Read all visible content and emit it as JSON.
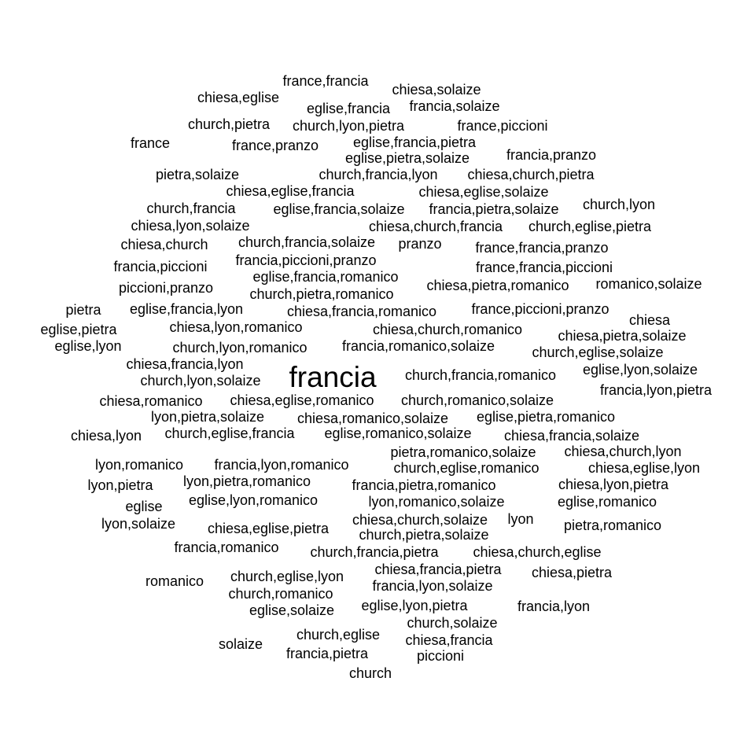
{
  "chart_data": {
    "type": "wordcloud",
    "text_color": "#000000",
    "background": "#ffffff",
    "words": [
      {
        "text": "france,francia",
        "weight": 1
      },
      {
        "text": "chiesa,solaize",
        "weight": 1
      },
      {
        "text": "chiesa,eglise",
        "weight": 1
      },
      {
        "text": "eglise,francia",
        "weight": 1
      },
      {
        "text": "francia,solaize",
        "weight": 1
      },
      {
        "text": "church,pietra",
        "weight": 1
      },
      {
        "text": "church,lyon,pietra",
        "weight": 1
      },
      {
        "text": "france,piccioni",
        "weight": 1
      },
      {
        "text": "france",
        "weight": 1
      },
      {
        "text": "france,pranzo",
        "weight": 1
      },
      {
        "text": "eglise,francia,pietra",
        "weight": 1
      },
      {
        "text": "eglise,pietra,solaize",
        "weight": 1
      },
      {
        "text": "francia,pranzo",
        "weight": 1
      },
      {
        "text": "pietra,solaize",
        "weight": 1
      },
      {
        "text": "church,francia,lyon",
        "weight": 1
      },
      {
        "text": "chiesa,church,pietra",
        "weight": 1
      },
      {
        "text": "chiesa,eglise,francia",
        "weight": 1
      },
      {
        "text": "chiesa,eglise,solaize",
        "weight": 1
      },
      {
        "text": "church,francia",
        "weight": 1
      },
      {
        "text": "eglise,francia,solaize",
        "weight": 1
      },
      {
        "text": "francia,pietra,solaize",
        "weight": 1
      },
      {
        "text": "church,lyon",
        "weight": 1
      },
      {
        "text": "chiesa,lyon,solaize",
        "weight": 1
      },
      {
        "text": "chiesa,church,francia",
        "weight": 1
      },
      {
        "text": "church,eglise,pietra",
        "weight": 1
      },
      {
        "text": "chiesa,church",
        "weight": 1
      },
      {
        "text": "church,francia,solaize",
        "weight": 1
      },
      {
        "text": "pranzo",
        "weight": 1
      },
      {
        "text": "france,francia,pranzo",
        "weight": 1
      },
      {
        "text": "francia,piccioni",
        "weight": 1
      },
      {
        "text": "francia,piccioni,pranzo",
        "weight": 1
      },
      {
        "text": "france,francia,piccioni",
        "weight": 1
      },
      {
        "text": "eglise,francia,romanico",
        "weight": 1
      },
      {
        "text": "piccioni,pranzo",
        "weight": 1
      },
      {
        "text": "chiesa,pietra,romanico",
        "weight": 1
      },
      {
        "text": "romanico,solaize",
        "weight": 1
      },
      {
        "text": "church,pietra,romanico",
        "weight": 1
      },
      {
        "text": "pietra",
        "weight": 1
      },
      {
        "text": "eglise,francia,lyon",
        "weight": 1
      },
      {
        "text": "chiesa,francia,romanico",
        "weight": 1
      },
      {
        "text": "france,piccioni,pranzo",
        "weight": 1
      },
      {
        "text": "chiesa",
        "weight": 1
      },
      {
        "text": "eglise,pietra",
        "weight": 1
      },
      {
        "text": "chiesa,lyon,romanico",
        "weight": 1
      },
      {
        "text": "chiesa,church,romanico",
        "weight": 1
      },
      {
        "text": "chiesa,pietra,solaize",
        "weight": 1
      },
      {
        "text": "eglise,lyon",
        "weight": 1
      },
      {
        "text": "church,lyon,romanico",
        "weight": 1
      },
      {
        "text": "francia,romanico,solaize",
        "weight": 1
      },
      {
        "text": "church,eglise,solaize",
        "weight": 1
      },
      {
        "text": "chiesa,francia,lyon",
        "weight": 1
      },
      {
        "text": "francia",
        "weight": 2
      },
      {
        "text": "church,francia,romanico",
        "weight": 1
      },
      {
        "text": "eglise,lyon,solaize",
        "weight": 1
      },
      {
        "text": "church,lyon,solaize",
        "weight": 1
      },
      {
        "text": "francia,lyon,pietra",
        "weight": 1
      },
      {
        "text": "chiesa,romanico",
        "weight": 1
      },
      {
        "text": "chiesa,eglise,romanico",
        "weight": 1
      },
      {
        "text": "church,romanico,solaize",
        "weight": 1
      },
      {
        "text": "lyon,pietra,solaize",
        "weight": 1
      },
      {
        "text": "chiesa,romanico,solaize",
        "weight": 1
      },
      {
        "text": "eglise,pietra,romanico",
        "weight": 1
      },
      {
        "text": "chiesa,lyon",
        "weight": 1
      },
      {
        "text": "church,eglise,francia",
        "weight": 1
      },
      {
        "text": "eglise,romanico,solaize",
        "weight": 1
      },
      {
        "text": "chiesa,francia,solaize",
        "weight": 1
      },
      {
        "text": "pietra,romanico,solaize",
        "weight": 1
      },
      {
        "text": "chiesa,church,lyon",
        "weight": 1
      },
      {
        "text": "lyon,romanico",
        "weight": 1
      },
      {
        "text": "francia,lyon,romanico",
        "weight": 1
      },
      {
        "text": "church,eglise,romanico",
        "weight": 1
      },
      {
        "text": "chiesa,eglise,lyon",
        "weight": 1
      },
      {
        "text": "lyon,pietra",
        "weight": 1
      },
      {
        "text": "lyon,pietra,romanico",
        "weight": 1
      },
      {
        "text": "francia,pietra,romanico",
        "weight": 1
      },
      {
        "text": "chiesa,lyon,pietra",
        "weight": 1
      },
      {
        "text": "eglise",
        "weight": 1
      },
      {
        "text": "eglise,lyon,romanico",
        "weight": 1
      },
      {
        "text": "lyon,romanico,solaize",
        "weight": 1
      },
      {
        "text": "eglise,romanico",
        "weight": 1
      },
      {
        "text": "lyon,solaize",
        "weight": 1
      },
      {
        "text": "chiesa,eglise,pietra",
        "weight": 1
      },
      {
        "text": "chiesa,church,solaize",
        "weight": 1
      },
      {
        "text": "lyon",
        "weight": 1
      },
      {
        "text": "pietra,romanico",
        "weight": 1
      },
      {
        "text": "church,pietra,solaize",
        "weight": 1
      },
      {
        "text": "francia,romanico",
        "weight": 1
      },
      {
        "text": "church,francia,pietra",
        "weight": 1
      },
      {
        "text": "chiesa,church,eglise",
        "weight": 1
      },
      {
        "text": "chiesa,francia,pietra",
        "weight": 1
      },
      {
        "text": "church,eglise,lyon",
        "weight": 1
      },
      {
        "text": "chiesa,pietra",
        "weight": 1
      },
      {
        "text": "romanico",
        "weight": 1
      },
      {
        "text": "francia,lyon,solaize",
        "weight": 1
      },
      {
        "text": "church,romanico",
        "weight": 1
      },
      {
        "text": "eglise,lyon,pietra",
        "weight": 1
      },
      {
        "text": "francia,lyon",
        "weight": 1
      },
      {
        "text": "eglise,solaize",
        "weight": 1
      },
      {
        "text": "church,solaize",
        "weight": 1
      },
      {
        "text": "church,eglise",
        "weight": 1
      },
      {
        "text": "solaize",
        "weight": 1
      },
      {
        "text": "chiesa,francia",
        "weight": 1
      },
      {
        "text": "francia,pietra",
        "weight": 1
      },
      {
        "text": "piccioni",
        "weight": 1
      },
      {
        "text": "church",
        "weight": 1
      }
    ]
  }
}
